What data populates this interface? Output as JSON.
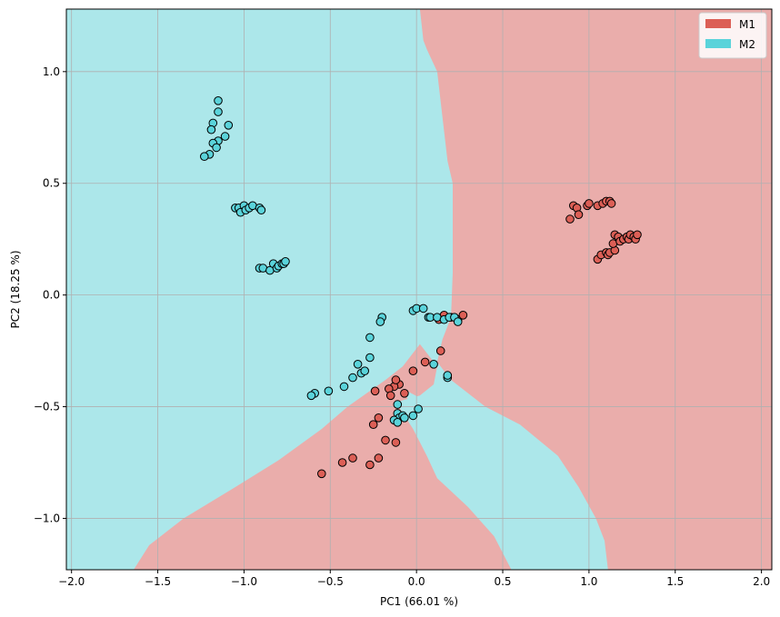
{
  "chart_data": {
    "type": "scatter",
    "xlabel": "PC1 (66.01 %)",
    "ylabel": "PC2 (18.25 %)",
    "xlim": [
      -2.03,
      2.06
    ],
    "ylim": [
      -1.23,
      1.28
    ],
    "xticks": [
      -2.0,
      -1.5,
      -1.0,
      -0.5,
      0.0,
      0.5,
      1.0,
      1.5,
      2.0
    ],
    "yticks": [
      -1.0,
      -0.5,
      0.0,
      0.5,
      1.0
    ],
    "xtick_labels": [
      "−2.0",
      "−1.5",
      "−1.0",
      "−0.5",
      "0.0",
      "0.5",
      "1.0",
      "1.5",
      "2.0"
    ],
    "ytick_labels": [
      "−1.0",
      "−0.5",
      "0.0",
      "0.5",
      "1.0"
    ],
    "grid": true,
    "legend_position": "top-right",
    "background_regions": {
      "M2_color": "#ace7ea",
      "M1_color": "#eaadab",
      "M1_main": [
        [
          0.02,
          1.28
        ],
        [
          0.04,
          1.14
        ],
        [
          0.06,
          1.1
        ],
        [
          0.12,
          1.0
        ],
        [
          0.15,
          0.8
        ],
        [
          0.18,
          0.6
        ],
        [
          0.21,
          0.5
        ],
        [
          0.21,
          0.1
        ],
        [
          0.2,
          -0.1
        ],
        [
          0.15,
          -0.2
        ],
        [
          0.12,
          -0.3
        ],
        [
          0.2,
          -0.38
        ],
        [
          0.4,
          -0.5
        ],
        [
          0.6,
          -0.58
        ],
        [
          0.82,
          -0.72
        ],
        [
          0.94,
          -0.86
        ],
        [
          1.04,
          -1.0
        ],
        [
          1.09,
          -1.1
        ],
        [
          1.11,
          -1.23
        ],
        [
          2.06,
          -1.23
        ],
        [
          2.06,
          1.28
        ]
      ],
      "M1_lower": [
        [
          -1.64,
          -1.23
        ],
        [
          -1.55,
          -1.12
        ],
        [
          -1.35,
          -1.0
        ],
        [
          -1.05,
          -0.86
        ],
        [
          -0.8,
          -0.74
        ],
        [
          -0.55,
          -0.6
        ],
        [
          -0.4,
          -0.5
        ],
        [
          -0.18,
          -0.38
        ],
        [
          -0.08,
          -0.32
        ],
        [
          0.02,
          -0.22
        ],
        [
          0.12,
          -0.32
        ],
        [
          0.1,
          -0.4
        ],
        [
          0.02,
          -0.45
        ],
        [
          -0.12,
          -0.48
        ],
        [
          -0.02,
          -0.6
        ],
        [
          0.06,
          -0.72
        ],
        [
          0.12,
          -0.82
        ],
        [
          0.3,
          -0.95
        ],
        [
          0.45,
          -1.08
        ],
        [
          0.55,
          -1.23
        ]
      ],
      "M2_wedge": [
        [
          -0.08,
          -0.42
        ],
        [
          0.02,
          -0.46
        ],
        [
          0.14,
          -0.44
        ],
        [
          0.3,
          -0.5
        ],
        [
          0.5,
          -0.6
        ],
        [
          0.72,
          -0.74
        ],
        [
          0.86,
          -0.88
        ],
        [
          0.94,
          -1.0
        ],
        [
          0.98,
          -1.23
        ],
        [
          0.62,
          -1.23
        ],
        [
          0.5,
          -1.08
        ],
        [
          0.36,
          -0.95
        ],
        [
          0.2,
          -0.82
        ],
        [
          0.1,
          -0.7
        ],
        [
          0.02,
          -0.58
        ]
      ]
    },
    "series": [
      {
        "name": "M1",
        "color": "#dc5f56",
        "points": [
          [
            0.89,
            0.34
          ],
          [
            0.91,
            0.4
          ],
          [
            0.93,
            0.39
          ],
          [
            0.94,
            0.36
          ],
          [
            0.99,
            0.4
          ],
          [
            1.0,
            0.41
          ],
          [
            1.05,
            0.4
          ],
          [
            1.08,
            0.41
          ],
          [
            1.1,
            0.42
          ],
          [
            1.12,
            0.42
          ],
          [
            1.13,
            0.41
          ],
          [
            1.05,
            0.16
          ],
          [
            1.07,
            0.18
          ],
          [
            1.1,
            0.19
          ],
          [
            1.11,
            0.18
          ],
          [
            1.12,
            0.19
          ],
          [
            1.15,
            0.2
          ],
          [
            1.14,
            0.23
          ],
          [
            1.15,
            0.27
          ],
          [
            1.17,
            0.26
          ],
          [
            1.18,
            0.24
          ],
          [
            1.2,
            0.25
          ],
          [
            1.22,
            0.26
          ],
          [
            1.23,
            0.25
          ],
          [
            1.24,
            0.27
          ],
          [
            1.26,
            0.26
          ],
          [
            1.27,
            0.25
          ],
          [
            1.28,
            0.27
          ],
          [
            0.13,
            -0.11
          ],
          [
            0.16,
            -0.09
          ],
          [
            0.2,
            -0.1
          ],
          [
            0.24,
            -0.11
          ],
          [
            0.27,
            -0.09
          ],
          [
            0.14,
            -0.25
          ],
          [
            0.05,
            -0.3
          ],
          [
            -0.02,
            -0.34
          ],
          [
            -0.1,
            -0.4
          ],
          [
            -0.13,
            -0.41
          ],
          [
            -0.16,
            -0.42
          ],
          [
            -0.24,
            -0.43
          ],
          [
            -0.12,
            -0.38
          ],
          [
            -0.07,
            -0.44
          ],
          [
            -0.15,
            -0.45
          ],
          [
            -0.22,
            -0.55
          ],
          [
            -0.25,
            -0.58
          ],
          [
            -0.18,
            -0.65
          ],
          [
            -0.12,
            -0.66
          ],
          [
            -0.22,
            -0.73
          ],
          [
            -0.37,
            -0.73
          ],
          [
            -0.43,
            -0.75
          ],
          [
            -0.27,
            -0.76
          ],
          [
            -0.55,
            -0.8
          ]
        ]
      },
      {
        "name": "M2",
        "color": "#5ad3da",
        "points": [
          [
            -1.15,
            0.87
          ],
          [
            -1.15,
            0.82
          ],
          [
            -1.18,
            0.77
          ],
          [
            -1.19,
            0.74
          ],
          [
            -1.09,
            0.76
          ],
          [
            -1.11,
            0.71
          ],
          [
            -1.15,
            0.69
          ],
          [
            -1.18,
            0.68
          ],
          [
            -1.16,
            0.66
          ],
          [
            -1.2,
            0.63
          ],
          [
            -1.23,
            0.62
          ],
          [
            -1.05,
            0.39
          ],
          [
            -1.03,
            0.39
          ],
          [
            -1.02,
            0.37
          ],
          [
            -1.0,
            0.4
          ],
          [
            -0.99,
            0.38
          ],
          [
            -0.97,
            0.39
          ],
          [
            -0.95,
            0.4
          ],
          [
            -0.91,
            0.39
          ],
          [
            -0.9,
            0.38
          ],
          [
            -0.91,
            0.12
          ],
          [
            -0.89,
            0.12
          ],
          [
            -0.85,
            0.11
          ],
          [
            -0.83,
            0.14
          ],
          [
            -0.81,
            0.12
          ],
          [
            -0.8,
            0.13
          ],
          [
            -0.78,
            0.14
          ],
          [
            -0.77,
            0.14
          ],
          [
            -0.76,
            0.15
          ],
          [
            -0.2,
            -0.1
          ],
          [
            -0.21,
            -0.12
          ],
          [
            -0.27,
            -0.19
          ],
          [
            -0.27,
            -0.28
          ],
          [
            -0.34,
            -0.31
          ],
          [
            -0.32,
            -0.35
          ],
          [
            -0.3,
            -0.34
          ],
          [
            -0.37,
            -0.37
          ],
          [
            -0.42,
            -0.41
          ],
          [
            -0.51,
            -0.43
          ],
          [
            -0.59,
            -0.44
          ],
          [
            -0.61,
            -0.45
          ],
          [
            -0.02,
            -0.07
          ],
          [
            0.0,
            -0.06
          ],
          [
            0.04,
            -0.06
          ],
          [
            0.07,
            -0.1
          ],
          [
            0.08,
            -0.1
          ],
          [
            0.12,
            -0.1
          ],
          [
            0.16,
            -0.11
          ],
          [
            0.19,
            -0.1
          ],
          [
            0.22,
            -0.1
          ],
          [
            0.24,
            -0.12
          ],
          [
            0.1,
            -0.31
          ],
          [
            0.18,
            -0.37
          ],
          [
            0.18,
            -0.36
          ],
          [
            -0.11,
            -0.49
          ],
          [
            -0.11,
            -0.53
          ],
          [
            -0.1,
            -0.55
          ],
          [
            -0.08,
            -0.54
          ],
          [
            -0.07,
            -0.55
          ],
          [
            -0.13,
            -0.56
          ],
          [
            -0.11,
            -0.57
          ],
          [
            -0.02,
            -0.54
          ],
          [
            0.01,
            -0.51
          ]
        ]
      }
    ]
  }
}
